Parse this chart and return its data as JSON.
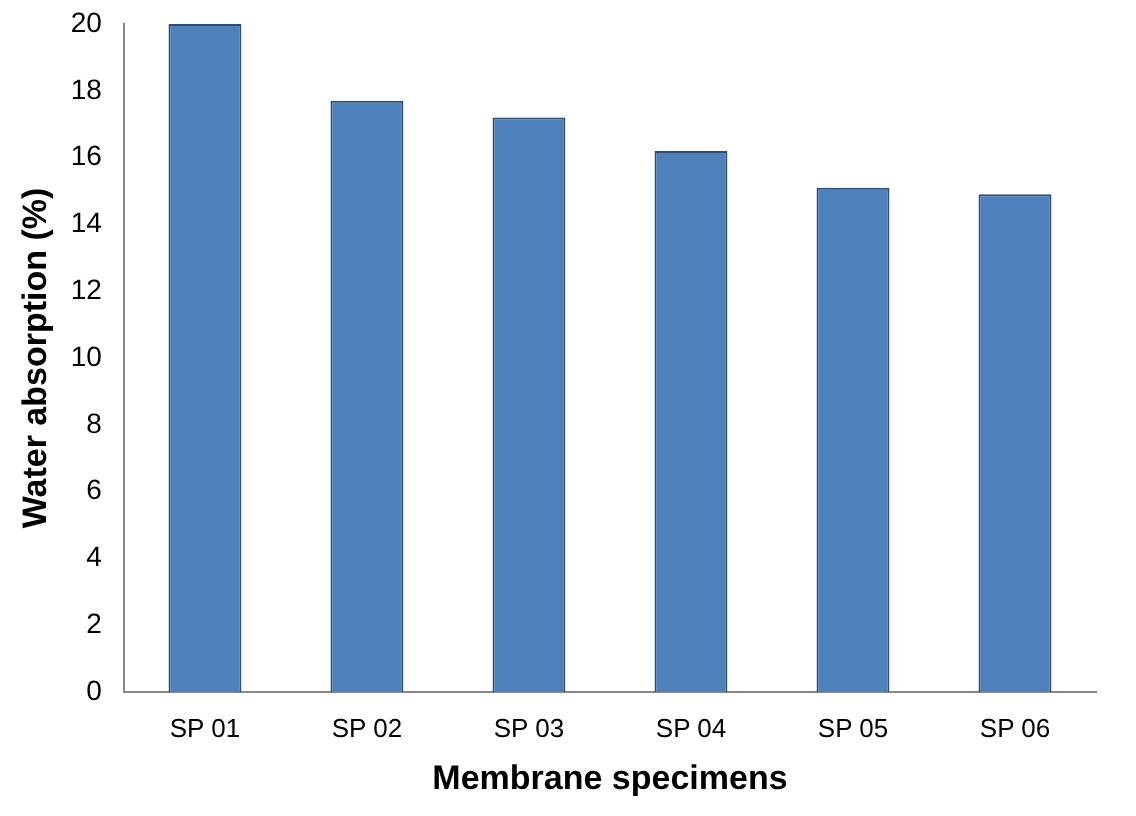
{
  "chart_data": {
    "type": "bar",
    "xlabel": "Membrane specimens",
    "ylabel": "Water absorption (%)",
    "categories": [
      "SP 01",
      "SP 02",
      "SP 03",
      "SP 04",
      "SP 05",
      "SP 06"
    ],
    "values": [
      20.0,
      17.7,
      17.2,
      16.2,
      15.1,
      14.9
    ],
    "color": "#4f81bd",
    "ylim": [
      0,
      20
    ],
    "yticks": [
      0,
      2,
      4,
      6,
      8,
      10,
      12,
      14,
      16,
      18,
      20
    ],
    "grid": false,
    "legend": false
  }
}
